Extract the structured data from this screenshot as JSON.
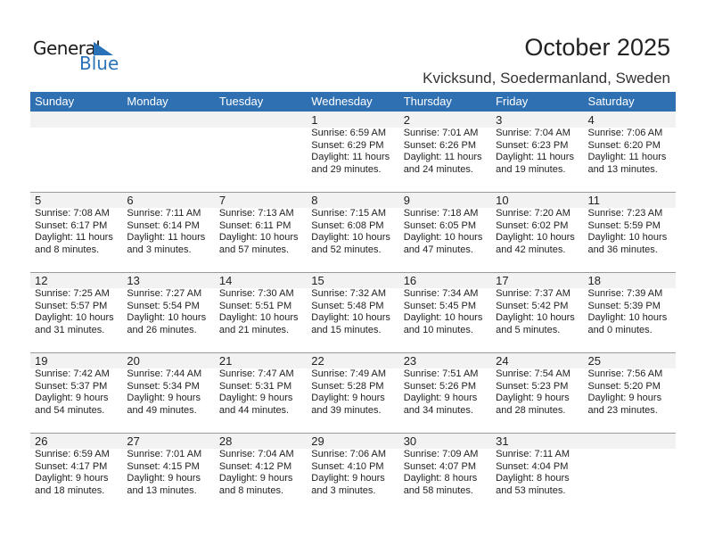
{
  "logo": {
    "word1": "General",
    "word2": "Blue"
  },
  "title": "October 2025",
  "location": "Kvicksund, Soedermanland, Sweden",
  "colors": {
    "header": "#2f70b3",
    "band": "#f2f2f2"
  },
  "weekdays": [
    "Sunday",
    "Monday",
    "Tuesday",
    "Wednesday",
    "Thursday",
    "Friday",
    "Saturday"
  ],
  "weeks": [
    [
      null,
      null,
      null,
      {
        "day": "1",
        "sunrise": "Sunrise: 6:59 AM",
        "sunset": "Sunset: 6:29 PM",
        "daylight": "Daylight: 11 hours",
        "minutes": "and 29 minutes."
      },
      {
        "day": "2",
        "sunrise": "Sunrise: 7:01 AM",
        "sunset": "Sunset: 6:26 PM",
        "daylight": "Daylight: 11 hours",
        "minutes": "and 24 minutes."
      },
      {
        "day": "3",
        "sunrise": "Sunrise: 7:04 AM",
        "sunset": "Sunset: 6:23 PM",
        "daylight": "Daylight: 11 hours",
        "minutes": "and 19 minutes."
      },
      {
        "day": "4",
        "sunrise": "Sunrise: 7:06 AM",
        "sunset": "Sunset: 6:20 PM",
        "daylight": "Daylight: 11 hours",
        "minutes": "and 13 minutes."
      }
    ],
    [
      {
        "day": "5",
        "sunrise": "Sunrise: 7:08 AM",
        "sunset": "Sunset: 6:17 PM",
        "daylight": "Daylight: 11 hours",
        "minutes": "and 8 minutes."
      },
      {
        "day": "6",
        "sunrise": "Sunrise: 7:11 AM",
        "sunset": "Sunset: 6:14 PM",
        "daylight": "Daylight: 11 hours",
        "minutes": "and 3 minutes."
      },
      {
        "day": "7",
        "sunrise": "Sunrise: 7:13 AM",
        "sunset": "Sunset: 6:11 PM",
        "daylight": "Daylight: 10 hours",
        "minutes": "and 57 minutes."
      },
      {
        "day": "8",
        "sunrise": "Sunrise: 7:15 AM",
        "sunset": "Sunset: 6:08 PM",
        "daylight": "Daylight: 10 hours",
        "minutes": "and 52 minutes."
      },
      {
        "day": "9",
        "sunrise": "Sunrise: 7:18 AM",
        "sunset": "Sunset: 6:05 PM",
        "daylight": "Daylight: 10 hours",
        "minutes": "and 47 minutes."
      },
      {
        "day": "10",
        "sunrise": "Sunrise: 7:20 AM",
        "sunset": "Sunset: 6:02 PM",
        "daylight": "Daylight: 10 hours",
        "minutes": "and 42 minutes."
      },
      {
        "day": "11",
        "sunrise": "Sunrise: 7:23 AM",
        "sunset": "Sunset: 5:59 PM",
        "daylight": "Daylight: 10 hours",
        "minutes": "and 36 minutes."
      }
    ],
    [
      {
        "day": "12",
        "sunrise": "Sunrise: 7:25 AM",
        "sunset": "Sunset: 5:57 PM",
        "daylight": "Daylight: 10 hours",
        "minutes": "and 31 minutes."
      },
      {
        "day": "13",
        "sunrise": "Sunrise: 7:27 AM",
        "sunset": "Sunset: 5:54 PM",
        "daylight": "Daylight: 10 hours",
        "minutes": "and 26 minutes."
      },
      {
        "day": "14",
        "sunrise": "Sunrise: 7:30 AM",
        "sunset": "Sunset: 5:51 PM",
        "daylight": "Daylight: 10 hours",
        "minutes": "and 21 minutes."
      },
      {
        "day": "15",
        "sunrise": "Sunrise: 7:32 AM",
        "sunset": "Sunset: 5:48 PM",
        "daylight": "Daylight: 10 hours",
        "minutes": "and 15 minutes."
      },
      {
        "day": "16",
        "sunrise": "Sunrise: 7:34 AM",
        "sunset": "Sunset: 5:45 PM",
        "daylight": "Daylight: 10 hours",
        "minutes": "and 10 minutes."
      },
      {
        "day": "17",
        "sunrise": "Sunrise: 7:37 AM",
        "sunset": "Sunset: 5:42 PM",
        "daylight": "Daylight: 10 hours",
        "minutes": "and 5 minutes."
      },
      {
        "day": "18",
        "sunrise": "Sunrise: 7:39 AM",
        "sunset": "Sunset: 5:39 PM",
        "daylight": "Daylight: 10 hours",
        "minutes": "and 0 minutes."
      }
    ],
    [
      {
        "day": "19",
        "sunrise": "Sunrise: 7:42 AM",
        "sunset": "Sunset: 5:37 PM",
        "daylight": "Daylight: 9 hours",
        "minutes": "and 54 minutes."
      },
      {
        "day": "20",
        "sunrise": "Sunrise: 7:44 AM",
        "sunset": "Sunset: 5:34 PM",
        "daylight": "Daylight: 9 hours",
        "minutes": "and 49 minutes."
      },
      {
        "day": "21",
        "sunrise": "Sunrise: 7:47 AM",
        "sunset": "Sunset: 5:31 PM",
        "daylight": "Daylight: 9 hours",
        "minutes": "and 44 minutes."
      },
      {
        "day": "22",
        "sunrise": "Sunrise: 7:49 AM",
        "sunset": "Sunset: 5:28 PM",
        "daylight": "Daylight: 9 hours",
        "minutes": "and 39 minutes."
      },
      {
        "day": "23",
        "sunrise": "Sunrise: 7:51 AM",
        "sunset": "Sunset: 5:26 PM",
        "daylight": "Daylight: 9 hours",
        "minutes": "and 34 minutes."
      },
      {
        "day": "24",
        "sunrise": "Sunrise: 7:54 AM",
        "sunset": "Sunset: 5:23 PM",
        "daylight": "Daylight: 9 hours",
        "minutes": "and 28 minutes."
      },
      {
        "day": "25",
        "sunrise": "Sunrise: 7:56 AM",
        "sunset": "Sunset: 5:20 PM",
        "daylight": "Daylight: 9 hours",
        "minutes": "and 23 minutes."
      }
    ],
    [
      {
        "day": "26",
        "sunrise": "Sunrise: 6:59 AM",
        "sunset": "Sunset: 4:17 PM",
        "daylight": "Daylight: 9 hours",
        "minutes": "and 18 minutes."
      },
      {
        "day": "27",
        "sunrise": "Sunrise: 7:01 AM",
        "sunset": "Sunset: 4:15 PM",
        "daylight": "Daylight: 9 hours",
        "minutes": "and 13 minutes."
      },
      {
        "day": "28",
        "sunrise": "Sunrise: 7:04 AM",
        "sunset": "Sunset: 4:12 PM",
        "daylight": "Daylight: 9 hours",
        "minutes": "and 8 minutes."
      },
      {
        "day": "29",
        "sunrise": "Sunrise: 7:06 AM",
        "sunset": "Sunset: 4:10 PM",
        "daylight": "Daylight: 9 hours",
        "minutes": "and 3 minutes."
      },
      {
        "day": "30",
        "sunrise": "Sunrise: 7:09 AM",
        "sunset": "Sunset: 4:07 PM",
        "daylight": "Daylight: 8 hours",
        "minutes": "and 58 minutes."
      },
      {
        "day": "31",
        "sunrise": "Sunrise: 7:11 AM",
        "sunset": "Sunset: 4:04 PM",
        "daylight": "Daylight: 8 hours",
        "minutes": "and 53 minutes."
      },
      null
    ]
  ]
}
